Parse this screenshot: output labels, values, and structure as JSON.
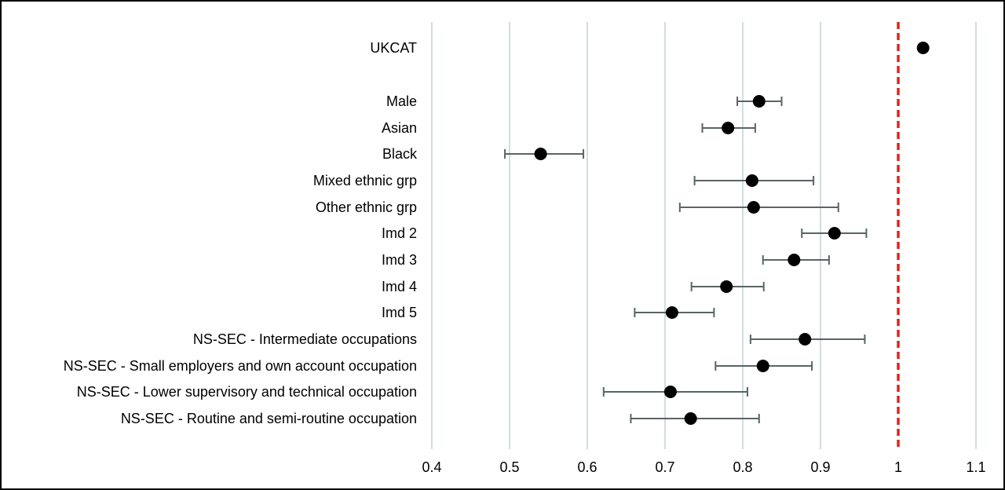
{
  "chart_data": {
    "type": "scatter",
    "title": "",
    "xlabel": "",
    "ylabel": "",
    "xlim": [
      0.4,
      1.1
    ],
    "xticks": [
      0.4,
      0.5,
      0.6,
      0.7,
      0.8,
      0.9,
      1.0,
      1.1
    ],
    "xtick_labels": [
      "0.4",
      "0.5",
      "0.6",
      "0.7",
      "0.8",
      "0.9",
      "1",
      "1.1"
    ],
    "grid": "vertical",
    "reference_line": {
      "x": 1,
      "style": "dashed",
      "color": "#e2231a"
    },
    "colors": {
      "point": "#000000",
      "error_bar": "#5a6464",
      "grid": "#d4dcdc"
    },
    "categories": [
      "UKCAT",
      "Male",
      "Asian",
      "Black",
      "Mixed ethnic grp",
      "Other ethnic grp",
      "Imd 2",
      "Imd 3",
      "Imd 4",
      "Imd 5",
      "NS-SEC - Intermediate occupations",
      "NS-SEC - Small employers and own account occupation",
      "NS-SEC - Lower supervisory and technical occupation",
      "NS-SEC - Routine and semi-routine occupation"
    ],
    "points": [
      {
        "label": "UKCAT",
        "estimate": 1.032,
        "lower": null,
        "upper": null
      },
      {
        "label": "Male",
        "estimate": 0.821,
        "lower": 0.793,
        "upper": 0.85
      },
      {
        "label": "Asian",
        "estimate": 0.781,
        "lower": 0.748,
        "upper": 0.816
      },
      {
        "label": "Black",
        "estimate": 0.54,
        "lower": 0.494,
        "upper": 0.595
      },
      {
        "label": "Mixed ethnic grp",
        "estimate": 0.812,
        "lower": 0.738,
        "upper": 0.891
      },
      {
        "label": "Other ethnic grp",
        "estimate": 0.814,
        "lower": 0.719,
        "upper": 0.923
      },
      {
        "label": "Imd 2",
        "estimate": 0.918,
        "lower": 0.876,
        "upper": 0.959
      },
      {
        "label": "Imd 3",
        "estimate": 0.866,
        "lower": 0.826,
        "upper": 0.911
      },
      {
        "label": "Imd 4",
        "estimate": 0.779,
        "lower": 0.734,
        "upper": 0.827
      },
      {
        "label": "Imd 5",
        "estimate": 0.709,
        "lower": 0.661,
        "upper": 0.763
      },
      {
        "label": "NS-SEC - Intermediate occupations",
        "estimate": 0.88,
        "lower": 0.81,
        "upper": 0.957
      },
      {
        "label": "NS-SEC - Small employers and own account occupation",
        "estimate": 0.826,
        "lower": 0.765,
        "upper": 0.889
      },
      {
        "label": "NS-SEC - Lower supervisory and technical occupation",
        "estimate": 0.707,
        "lower": 0.621,
        "upper": 0.806
      },
      {
        "label": "NS-SEC - Routine and semi-routine occupation",
        "estimate": 0.733,
        "lower": 0.656,
        "upper": 0.821
      }
    ]
  }
}
